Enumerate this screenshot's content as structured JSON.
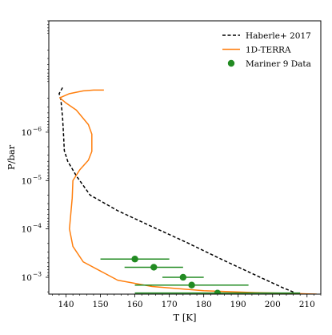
{
  "chart_data": {
    "type": "line",
    "title": "",
    "xlabel": "T [K]",
    "ylabel": "P/bar",
    "x_range": [
      135,
      214
    ],
    "y_scale": "log",
    "y_range_bar": [
      5e-09,
      0.00223
    ],
    "y_inverted": true,
    "grid": false,
    "legend_position": "top-right",
    "x_ticks": [
      {
        "value": 140,
        "label": "140"
      },
      {
        "value": 150,
        "label": "150"
      },
      {
        "value": 160,
        "label": "160"
      },
      {
        "value": 170,
        "label": "170"
      },
      {
        "value": 180,
        "label": "180"
      },
      {
        "value": 190,
        "label": "190"
      },
      {
        "value": 200,
        "label": "200"
      },
      {
        "value": 210,
        "label": "210"
      }
    ],
    "y_ticks": [
      {
        "value": 1e-06,
        "base": "10",
        "exp": "−6"
      },
      {
        "value": 1e-05,
        "base": "10",
        "exp": "−5"
      },
      {
        "value": 0.0001,
        "base": "10",
        "exp": "−4"
      },
      {
        "value": 0.001,
        "base": "10",
        "exp": "−3"
      }
    ],
    "series": [
      {
        "name": "Haberle+ 2017",
        "color": "#000000",
        "style": "dashed",
        "points": [
          [
            139,
            1.2e-07
          ],
          [
            138,
            1.6e-07
          ],
          [
            138.5,
            2.1e-07
          ],
          [
            139,
            5e-07
          ],
          [
            139.3,
            1.2e-06
          ],
          [
            139.5,
            2.4e-06
          ],
          [
            140.5,
            4e-06
          ],
          [
            143,
            8e-06
          ],
          [
            147,
            2e-05
          ],
          [
            155,
            4.2e-05
          ],
          [
            165,
            9e-05
          ],
          [
            175,
            0.00019
          ],
          [
            185,
            0.00042
          ],
          [
            195,
            0.0009
          ],
          [
            203,
            0.00165
          ],
          [
            205.5,
            0.00195
          ],
          [
            207,
            0.0022
          ]
        ]
      },
      {
        "name": "1D-TERRA",
        "color": "#ff7f0e",
        "style": "solid",
        "points": [
          [
            151,
            1.35e-07
          ],
          [
            148,
            1.35e-07
          ],
          [
            145,
            1.4e-07
          ],
          [
            141,
            1.6e-07
          ],
          [
            138.2,
            1.95e-07
          ],
          [
            140,
            2.5e-07
          ],
          [
            143,
            3.5e-07
          ],
          [
            146.5,
            7e-07
          ],
          [
            147.5,
            1.1e-06
          ],
          [
            147.5,
            2.5e-06
          ],
          [
            146.5,
            3.8e-06
          ],
          [
            144,
            6e-06
          ],
          [
            142,
            1e-05
          ],
          [
            141.8,
            2.3e-05
          ],
          [
            141.5,
            4e-05
          ],
          [
            141,
            0.0001
          ],
          [
            142,
            0.00023
          ],
          [
            145,
            0.00048
          ],
          [
            155,
            0.00115
          ],
          [
            165,
            0.00155
          ],
          [
            180,
            0.0019
          ],
          [
            195,
            0.00208
          ],
          [
            205,
            0.00215
          ],
          [
            212.8,
            0.00223
          ]
        ]
      },
      {
        "name": "Mariner 9 Data",
        "color": "#228b22",
        "style": "markers",
        "points": [
          {
            "x": 160,
            "y": 0.00042,
            "xerr_low": 150,
            "xerr_high": 170
          },
          {
            "x": 165.5,
            "y": 0.00062,
            "xerr_low": 157,
            "xerr_high": 174
          },
          {
            "x": 174,
            "y": 0.001,
            "xerr_low": 168,
            "xerr_high": 180
          },
          {
            "x": 176.5,
            "y": 0.00145,
            "xerr_low": 160,
            "xerr_high": 193
          },
          {
            "x": 184,
            "y": 0.00212,
            "xerr_low": 160,
            "xerr_high": 208
          }
        ]
      }
    ]
  }
}
